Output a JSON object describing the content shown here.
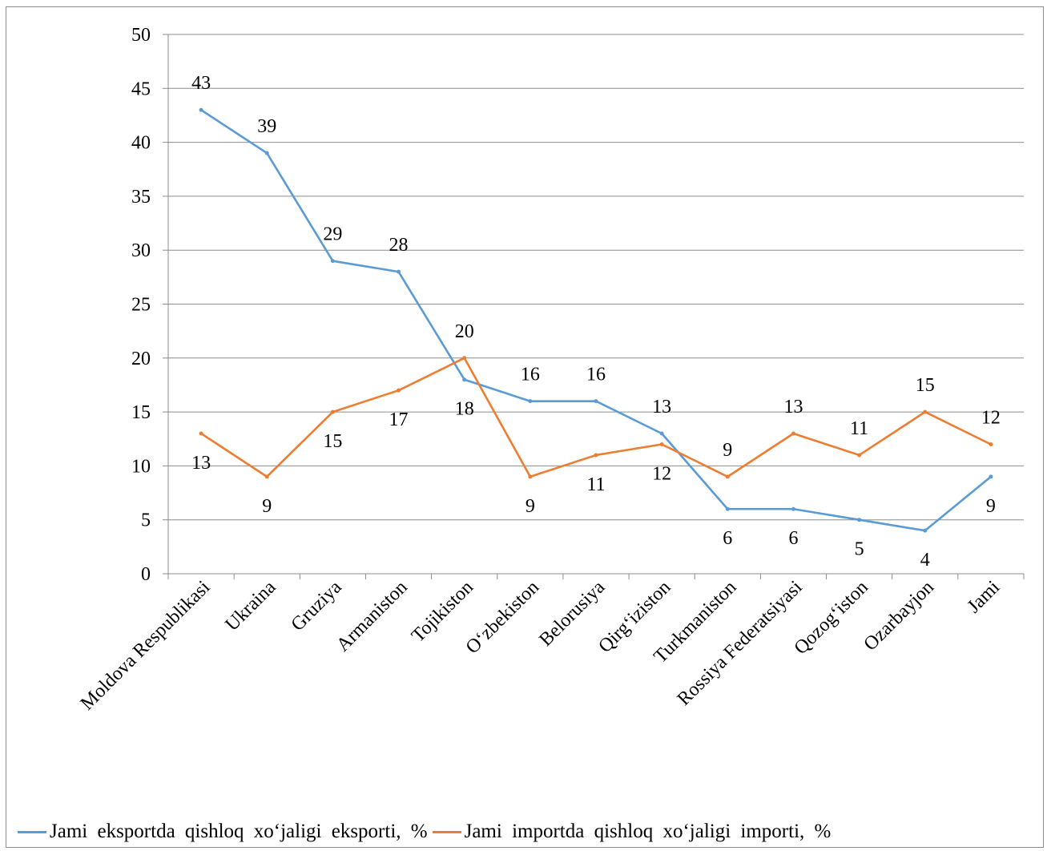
{
  "chart_data": {
    "type": "line",
    "categories": [
      "Moldova Respublikasi",
      "Ukraina",
      "Gruziya",
      "Armaniston",
      "Tojikiston",
      "O‘zbekiston",
      "Belorusiya",
      "Qirg‘iziston",
      "Turkmaniston",
      "Rossiya Federatsiyasi",
      "Qozog‘iston",
      "Ozarbayjon",
      "Jami"
    ],
    "series": [
      {
        "name": "Jami eksportda qishloq xo‘jaligi eksporti, %",
        "color": "#5b9bd5",
        "values": [
          43,
          39,
          29,
          28,
          18,
          16,
          16,
          13,
          6,
          6,
          5,
          4,
          9
        ]
      },
      {
        "name": "Jami importda qishloq xo‘jaligi importi, %",
        "color": "#ed7d31",
        "values": [
          13,
          9,
          15,
          17,
          20,
          9,
          11,
          12,
          9,
          13,
          11,
          15,
          12
        ]
      }
    ],
    "ylim": [
      0,
      50
    ],
    "yticks": [
      0,
      5,
      10,
      15,
      20,
      25,
      30,
      35,
      40,
      45,
      50
    ],
    "grid": true,
    "legend_position": "bottom",
    "title": "",
    "xlabel": "",
    "ylabel": ""
  }
}
